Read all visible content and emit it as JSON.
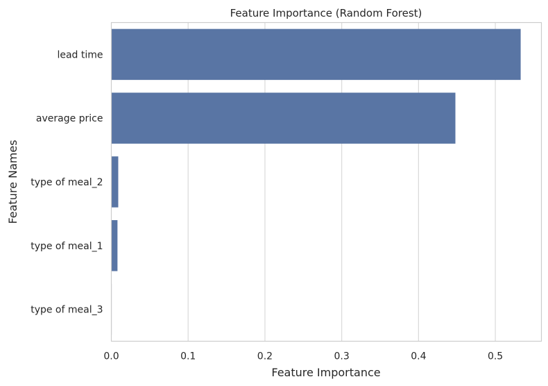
{
  "chart_data": {
    "type": "bar",
    "orientation": "horizontal",
    "title": "Feature Importance (Random Forest)",
    "xlabel": "Feature Importance",
    "ylabel": "Feature Names",
    "categories": [
      "lead time",
      "average price",
      "type of meal_2",
      "type of meal_1",
      "type of meal_3"
    ],
    "values": [
      0.533,
      0.448,
      0.009,
      0.008,
      0.0005
    ],
    "xlim": [
      0,
      0.56
    ],
    "xticks": [
      "0.0",
      "0.1",
      "0.2",
      "0.3",
      "0.4",
      "0.5"
    ],
    "grid": "vertical",
    "bar_color": "#5975a4"
  }
}
